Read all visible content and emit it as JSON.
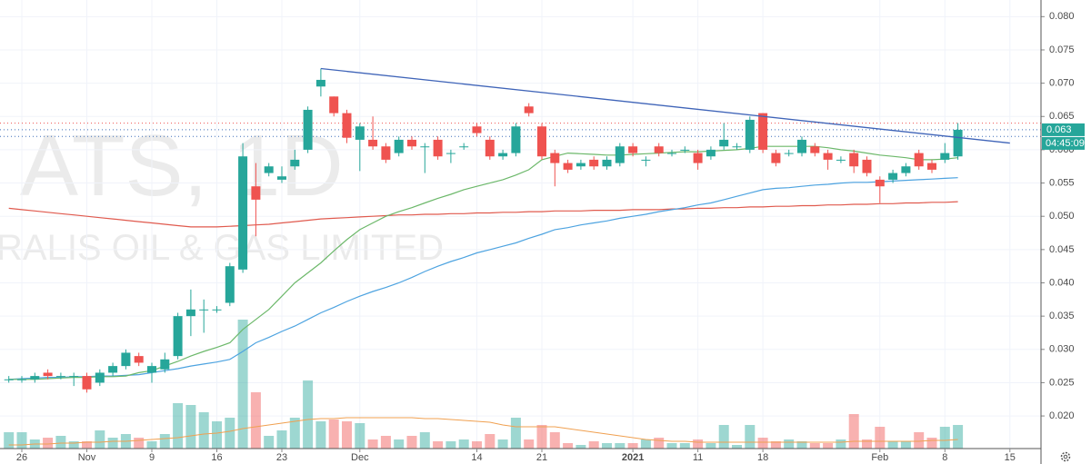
{
  "chart_data": {
    "type": "candlestick",
    "watermark": "ATS, 1D",
    "watermark_subtitle": "RALIS OIL & GAS LIMITED",
    "categories": [
      null,
      "26",
      null,
      null,
      null,
      null,
      "Nov",
      null,
      null,
      null,
      null,
      "9",
      null,
      null,
      null,
      null,
      "16",
      null,
      null,
      null,
      null,
      "23",
      null,
      null,
      null,
      null,
      null,
      "Dec",
      null,
      null,
      null,
      null,
      null,
      null,
      null,
      null,
      "14",
      null,
      null,
      null,
      null,
      "21",
      null,
      null,
      null,
      null,
      null,
      null,
      "2021",
      null,
      null,
      null,
      null,
      "11",
      null,
      null,
      null,
      null,
      "18",
      null,
      null,
      null,
      null,
      null,
      null,
      null,
      null,
      "Feb",
      null,
      null,
      null,
      null,
      "8",
      null,
      null,
      null,
      null,
      "15"
    ],
    "open": [
      0.0255,
      0.0255,
      0.0255,
      0.0265,
      0.026,
      0.026,
      0.026,
      0.025,
      0.0265,
      0.0275,
      0.029,
      0.0265,
      0.027,
      0.029,
      0.035,
      0.036,
      0.036,
      0.037,
      0.042,
      0.0545,
      0.0565,
      0.0555,
      0.0575,
      0.06,
      0.0695,
      0.068,
      0.0655,
      0.0615,
      0.0615,
      0.0605,
      0.0595,
      0.0615,
      0.0605,
      0.0615,
      0.0595,
      0.0605,
      0.0635,
      0.0615,
      0.059,
      0.0595,
      0.0665,
      0.0635,
      0.0595,
      0.058,
      0.0575,
      0.0585,
      0.0575,
      0.058,
      0.0605,
      0.0585,
      0.0605,
      0.0595,
      0.06,
      0.0595,
      0.059,
      0.0605,
      0.0605,
      0.06,
      0.0655,
      0.0595,
      0.0595,
      0.0595,
      0.0605,
      0.0595,
      0.0585,
      0.0595,
      0.0585,
      0.0555,
      0.0555,
      0.0565,
      0.0595,
      0.058,
      0.0585,
      0.059,
      null,
      null,
      null,
      null
    ],
    "high": [
      0.026,
      0.026,
      0.0265,
      0.027,
      0.0265,
      0.0265,
      0.0265,
      0.027,
      0.028,
      0.03,
      0.0295,
      0.028,
      0.0295,
      0.0355,
      0.039,
      0.0375,
      0.0365,
      0.043,
      0.061,
      0.058,
      0.058,
      0.0575,
      0.06,
      0.0665,
      0.0722,
      0.068,
      0.066,
      0.064,
      0.065,
      0.061,
      0.062,
      0.062,
      0.061,
      0.062,
      0.06,
      0.061,
      0.064,
      0.062,
      0.06,
      0.064,
      0.067,
      0.064,
      0.06,
      0.0585,
      0.0585,
      0.059,
      0.059,
      0.061,
      0.061,
      0.059,
      0.061,
      0.06,
      0.0605,
      0.06,
      0.0605,
      0.064,
      0.061,
      0.065,
      0.0655,
      0.06,
      0.06,
      0.062,
      0.061,
      0.06,
      0.059,
      0.06,
      0.059,
      0.056,
      0.057,
      0.058,
      0.06,
      0.0585,
      0.061,
      0.064,
      null,
      null,
      null,
      null
    ],
    "low": [
      0.025,
      0.025,
      0.025,
      0.0255,
      0.0255,
      0.0245,
      0.0235,
      0.0245,
      0.026,
      0.027,
      0.0275,
      0.025,
      0.0265,
      0.0285,
      0.032,
      0.0325,
      0.0355,
      0.0365,
      0.0415,
      0.047,
      0.056,
      0.055,
      0.057,
      0.0595,
      0.068,
      0.065,
      0.061,
      0.0568,
      0.06,
      0.058,
      0.059,
      0.06,
      0.0565,
      0.0585,
      0.058,
      0.06,
      0.062,
      0.0585,
      0.0585,
      0.059,
      0.065,
      0.0585,
      0.0545,
      0.0565,
      0.057,
      0.057,
      0.057,
      0.0575,
      0.059,
      0.0575,
      0.059,
      0.059,
      0.0595,
      0.057,
      0.0585,
      0.06,
      0.06,
      0.0595,
      0.0595,
      0.0575,
      0.059,
      0.059,
      0.059,
      0.057,
      0.058,
      0.0565,
      0.056,
      0.052,
      0.055,
      0.056,
      0.057,
      0.0565,
      0.058,
      0.0585,
      null,
      null,
      null,
      null
    ],
    "close": [
      0.0255,
      0.0255,
      0.026,
      0.026,
      0.026,
      0.026,
      0.024,
      0.0265,
      0.0275,
      0.0295,
      0.028,
      0.0275,
      0.0285,
      0.035,
      0.036,
      0.036,
      0.036,
      0.0425,
      0.059,
      0.0525,
      0.0575,
      0.056,
      0.0585,
      0.066,
      0.0705,
      0.0655,
      0.0618,
      0.0635,
      0.0605,
      0.0585,
      0.0615,
      0.0605,
      0.0605,
      0.059,
      0.0595,
      0.0605,
      0.0625,
      0.059,
      0.0595,
      0.0635,
      0.0655,
      0.059,
      0.058,
      0.057,
      0.058,
      0.0575,
      0.0585,
      0.0605,
      0.0595,
      0.0585,
      0.0595,
      0.0595,
      0.06,
      0.058,
      0.06,
      0.0615,
      0.0605,
      0.0645,
      0.06,
      0.058,
      0.0595,
      0.0615,
      0.0595,
      0.0585,
      0.0585,
      0.0575,
      0.0565,
      0.0545,
      0.0565,
      0.0575,
      0.0575,
      0.057,
      0.0595,
      0.063,
      null,
      null,
      null,
      null
    ],
    "volume": [
      18,
      18,
      10,
      12,
      14,
      8,
      8,
      20,
      12,
      16,
      12,
      8,
      16,
      50,
      48,
      40,
      30,
      34,
      142,
      62,
      14,
      20,
      34,
      75,
      30,
      32,
      30,
      28,
      10,
      14,
      10,
      14,
      18,
      8,
      8,
      10,
      8,
      16,
      10,
      34,
      10,
      26,
      18,
      6,
      4,
      8,
      6,
      6,
      6,
      10,
      12,
      6,
      6,
      10,
      6,
      26,
      4,
      26,
      12,
      8,
      10,
      8,
      6,
      6,
      10,
      38,
      10,
      24,
      8,
      8,
      18,
      12,
      24,
      26,
      null,
      null,
      null,
      null
    ],
    "volume_ma": {
      "color": "#f0a050",
      "values": [
        4,
        4,
        5,
        5,
        6,
        6,
        7,
        7,
        8,
        8,
        9,
        10,
        11,
        12,
        14,
        16,
        17,
        19,
        22,
        24,
        26,
        28,
        30,
        32,
        33,
        33,
        34,
        34,
        34,
        34,
        34,
        34,
        33,
        33,
        32,
        31,
        30,
        29,
        26,
        24,
        24,
        24,
        24,
        22,
        20,
        18,
        16,
        14,
        12,
        10,
        9,
        8,
        8,
        7,
        7,
        7,
        7,
        7,
        7,
        7,
        7,
        7,
        7,
        7,
        7,
        8,
        8,
        8,
        8,
        8,
        8,
        9,
        9,
        10,
        null,
        null,
        null,
        null
      ]
    },
    "moving_averages": [
      {
        "color": "#e05a4e",
        "values": [
          0.0512,
          0.051,
          0.0508,
          0.0506,
          0.0504,
          0.0502,
          0.05,
          0.0498,
          0.0496,
          0.0494,
          0.0492,
          0.049,
          0.0488,
          0.0486,
          0.0484,
          0.0484,
          0.0484,
          0.0485,
          0.0486,
          0.0487,
          0.0488,
          0.049,
          0.0492,
          0.0494,
          0.0496,
          0.0497,
          0.0498,
          0.0499,
          0.05,
          0.0501,
          0.0502,
          0.0502,
          0.0503,
          0.0503,
          0.0504,
          0.0504,
          0.0505,
          0.0505,
          0.0506,
          0.0506,
          0.0507,
          0.0507,
          0.0508,
          0.0508,
          0.0508,
          0.0509,
          0.0509,
          0.0509,
          0.051,
          0.051,
          0.051,
          0.0511,
          0.0511,
          0.0512,
          0.0512,
          0.0513,
          0.0513,
          0.0514,
          0.0514,
          0.0515,
          0.0515,
          0.0516,
          0.0516,
          0.0517,
          0.0517,
          0.0518,
          0.0518,
          0.0519,
          0.0519,
          0.052,
          0.052,
          0.0521,
          0.0521,
          0.0522,
          null,
          null,
          null,
          null
        ]
      },
      {
        "color": "#4da3e0",
        "values": [
          0.0255,
          0.0256,
          0.0257,
          0.0258,
          0.0258,
          0.0259,
          0.0259,
          0.026,
          0.026,
          0.0261,
          0.0262,
          0.0265,
          0.0268,
          0.0271,
          0.0275,
          0.0278,
          0.0281,
          0.0285,
          0.0297,
          0.031,
          0.0318,
          0.0327,
          0.0335,
          0.0345,
          0.0355,
          0.0363,
          0.0372,
          0.038,
          0.0387,
          0.0393,
          0.04,
          0.0408,
          0.0417,
          0.0425,
          0.0432,
          0.0438,
          0.0445,
          0.045,
          0.0455,
          0.046,
          0.0467,
          0.0473,
          0.048,
          0.0483,
          0.0487,
          0.049,
          0.0493,
          0.0497,
          0.05,
          0.0503,
          0.0507,
          0.051,
          0.0513,
          0.0517,
          0.052,
          0.0525,
          0.053,
          0.0535,
          0.054,
          0.0542,
          0.0543,
          0.0545,
          0.0547,
          0.0548,
          0.055,
          0.0551,
          0.0551,
          0.0552,
          0.0553,
          0.0554,
          0.0555,
          0.0556,
          0.0557,
          0.0558,
          null,
          null,
          null,
          null
        ]
      },
      {
        "color": "#6cb86a",
        "values": [
          0.0255,
          0.0255,
          0.0255,
          0.0256,
          0.0257,
          0.0258,
          0.0258,
          0.0259,
          0.0259,
          0.026,
          0.0265,
          0.0268,
          0.0275,
          0.0282,
          0.029,
          0.0297,
          0.0303,
          0.031,
          0.033,
          0.0345,
          0.036,
          0.038,
          0.04,
          0.0415,
          0.043,
          0.0448,
          0.0465,
          0.048,
          0.049,
          0.05,
          0.0507,
          0.0513,
          0.052,
          0.0527,
          0.0533,
          0.054,
          0.0545,
          0.055,
          0.0555,
          0.0562,
          0.057,
          0.0585,
          0.059,
          0.0595,
          0.0594,
          0.0593,
          0.0592,
          0.0592,
          0.0593,
          0.0594,
          0.0595,
          0.0596,
          0.0597,
          0.0597,
          0.0598,
          0.0599,
          0.06,
          0.0602,
          0.0605,
          0.0605,
          0.0605,
          0.0605,
          0.0605,
          0.0603,
          0.06,
          0.0598,
          0.0595,
          0.0592,
          0.059,
          0.0588,
          0.0585,
          0.0585,
          0.0586,
          0.0588,
          null,
          null,
          null,
          null
        ]
      }
    ],
    "trendline": {
      "color": "#3f64b8",
      "points": [
        {
          "x": 24,
          "y": 0.0722
        },
        {
          "x": 77,
          "y": 0.061
        }
      ]
    },
    "price_lines": [
      {
        "value": 0.064,
        "color": "#ef5350"
      },
      {
        "value": 0.063,
        "color": "#3f6fb8"
      },
      {
        "value": 0.062,
        "color": "#3f6fb8"
      }
    ],
    "last_price": {
      "value": 0.063,
      "label": "0.063"
    },
    "countdown": "04:45:09",
    "up_color": "#26a69a",
    "down_color": "#ef5350",
    "ylim": [
      0.0151,
      0.0825
    ],
    "yticks": [
      {
        "value": 0.08,
        "label": "0.080"
      },
      0.075,
      {
        "value": 0.07,
        "label": "0.070"
      },
      0.065,
      {
        "value": 0.06,
        "label": "0.060"
      },
      0.055,
      {
        "value": 0.05,
        "label": "0.050"
      },
      0.045,
      {
        "value": 0.04,
        "label": "0.040"
      },
      0.035,
      {
        "value": 0.03,
        "label": "0.030"
      },
      0.025,
      {
        "value": 0.02,
        "label": "0.020"
      }
    ],
    "grid": true
  }
}
